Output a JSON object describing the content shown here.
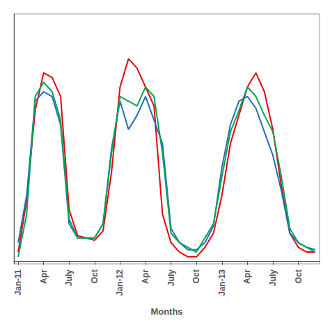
{
  "chart_data": {
    "type": "line",
    "xlabel": "Months",
    "categories": [
      "Jan-11",
      null,
      null,
      "Apr",
      null,
      null,
      "July",
      null,
      null,
      "Oct",
      null,
      null,
      "Jan-12",
      null,
      null,
      "Apr",
      null,
      null,
      "July",
      null,
      null,
      "Oct",
      null,
      null,
      "Jan-13",
      null,
      null,
      "Apr",
      null,
      null,
      "July",
      null,
      null,
      "Oct",
      null,
      null
    ],
    "series": [
      {
        "color": "#e8000e",
        "values": [
          0.04,
          0.26,
          0.64,
          0.8,
          0.78,
          0.7,
          0.22,
          0.11,
          0.1,
          0.09,
          0.13,
          0.38,
          0.74,
          0.86,
          0.82,
          0.74,
          0.66,
          0.2,
          0.08,
          0.04,
          0.02,
          0.02,
          0.06,
          0.12,
          0.28,
          0.5,
          0.62,
          0.74,
          0.8,
          0.72,
          0.56,
          0.32,
          0.12,
          0.06,
          0.04,
          0.04
        ]
      },
      {
        "color": "#1f6fbd",
        "values": [
          0.08,
          0.28,
          0.68,
          0.72,
          0.7,
          0.58,
          0.16,
          0.1,
          0.1,
          0.1,
          0.16,
          0.48,
          0.68,
          0.56,
          0.62,
          0.7,
          0.6,
          0.5,
          0.14,
          0.08,
          0.05,
          0.05,
          0.08,
          0.15,
          0.4,
          0.58,
          0.68,
          0.7,
          0.65,
          0.55,
          0.45,
          0.3,
          0.12,
          0.08,
          0.06,
          0.05
        ]
      },
      {
        "color": "#00a550",
        "values": [
          0.02,
          0.2,
          0.7,
          0.76,
          0.72,
          0.6,
          0.18,
          0.1,
          0.1,
          0.1,
          0.16,
          0.46,
          0.7,
          0.68,
          0.66,
          0.74,
          0.7,
          0.46,
          0.12,
          0.08,
          0.06,
          0.04,
          0.1,
          0.16,
          0.36,
          0.55,
          0.64,
          0.74,
          0.7,
          0.62,
          0.55,
          0.36,
          0.14,
          0.08,
          0.06,
          0.04
        ]
      }
    ],
    "ylim": [
      -0.01,
      1.05
    ],
    "grid": false,
    "tick_labels": "x"
  }
}
